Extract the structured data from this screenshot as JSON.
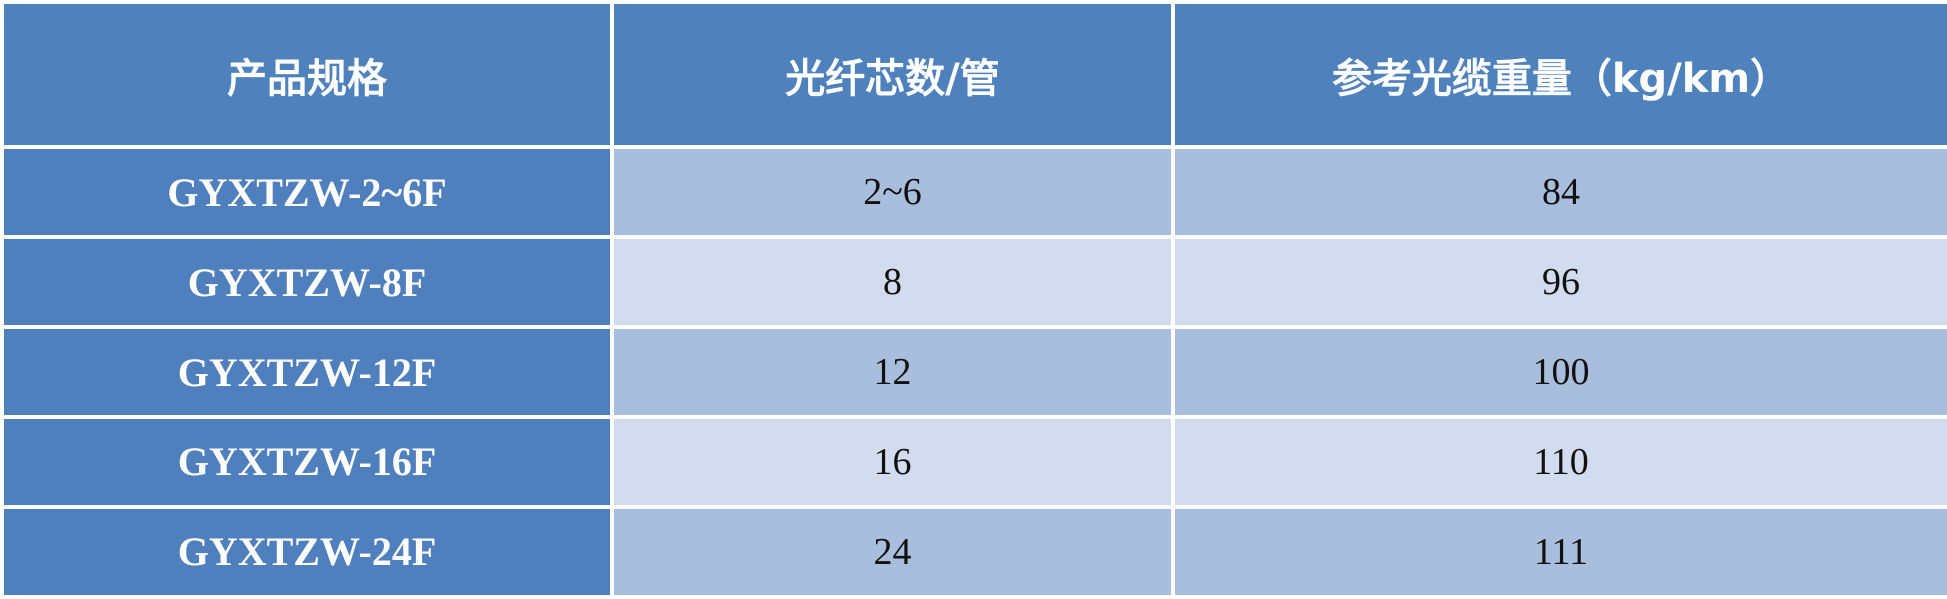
{
  "headers": [
    "产品规格",
    "光纤芯数/管",
    "参考光缆重量（kg/km）"
  ],
  "rows": [
    {
      "spec": "GYXTZW-2~6F",
      "fibers": "2~6",
      "weight": "84"
    },
    {
      "spec": "GYXTZW-8F",
      "fibers": "8",
      "weight": "96"
    },
    {
      "spec": "GYXTZW-12F",
      "fibers": "12",
      "weight": "100"
    },
    {
      "spec": "GYXTZW-16F",
      "fibers": "16",
      "weight": "110"
    },
    {
      "spec": "GYXTZW-24F",
      "fibers": "24",
      "weight": "111"
    }
  ],
  "colors": {
    "header": "#4f81bd",
    "row_odd": "#a9bddd",
    "row_even": "#d3dcee"
  }
}
